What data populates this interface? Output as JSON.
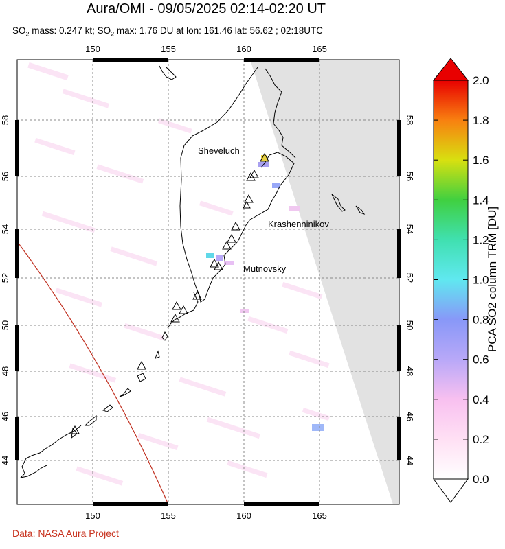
{
  "title": "Aura/OMI - 09/05/2025 02:14-02:20 UT",
  "subtitle": {
    "mass_label": "SO",
    "mass_sub": "2",
    "mass_text": " mass: 0.247 kt; SO",
    "max_sub": "2",
    "max_text": " max: 1.76 DU at lon: 161.46 lat: 56.62 ; 02:18UTC"
  },
  "map": {
    "lon_ticks": [
      "150",
      "155",
      "160",
      "165"
    ],
    "lat_ticks": [
      "44",
      "46",
      "48",
      "50",
      "52",
      "54",
      "56",
      "58"
    ],
    "volcanoes": [
      {
        "name": "Sheveluch"
      },
      {
        "name": "Krashenninikov"
      },
      {
        "name": "Mutnovsky"
      }
    ]
  },
  "colorbar": {
    "label": "PCA SO2 column TRM [DU]",
    "ticks": [
      "0.0",
      "0.2",
      "0.4",
      "0.6",
      "0.8",
      "1.0",
      "1.2",
      "1.4",
      "1.6",
      "1.8",
      "2.0"
    ],
    "min": 0.0,
    "max": 2.0,
    "colors": [
      "#ffffff",
      "#ffd8f0",
      "#f0b0f0",
      "#a8a8f8",
      "#80d8f0",
      "#40e8c0",
      "#30d030",
      "#d8e020",
      "#f8a010",
      "#f03000",
      "#e00000"
    ]
  },
  "credit": "Data: NASA Aura Project"
}
